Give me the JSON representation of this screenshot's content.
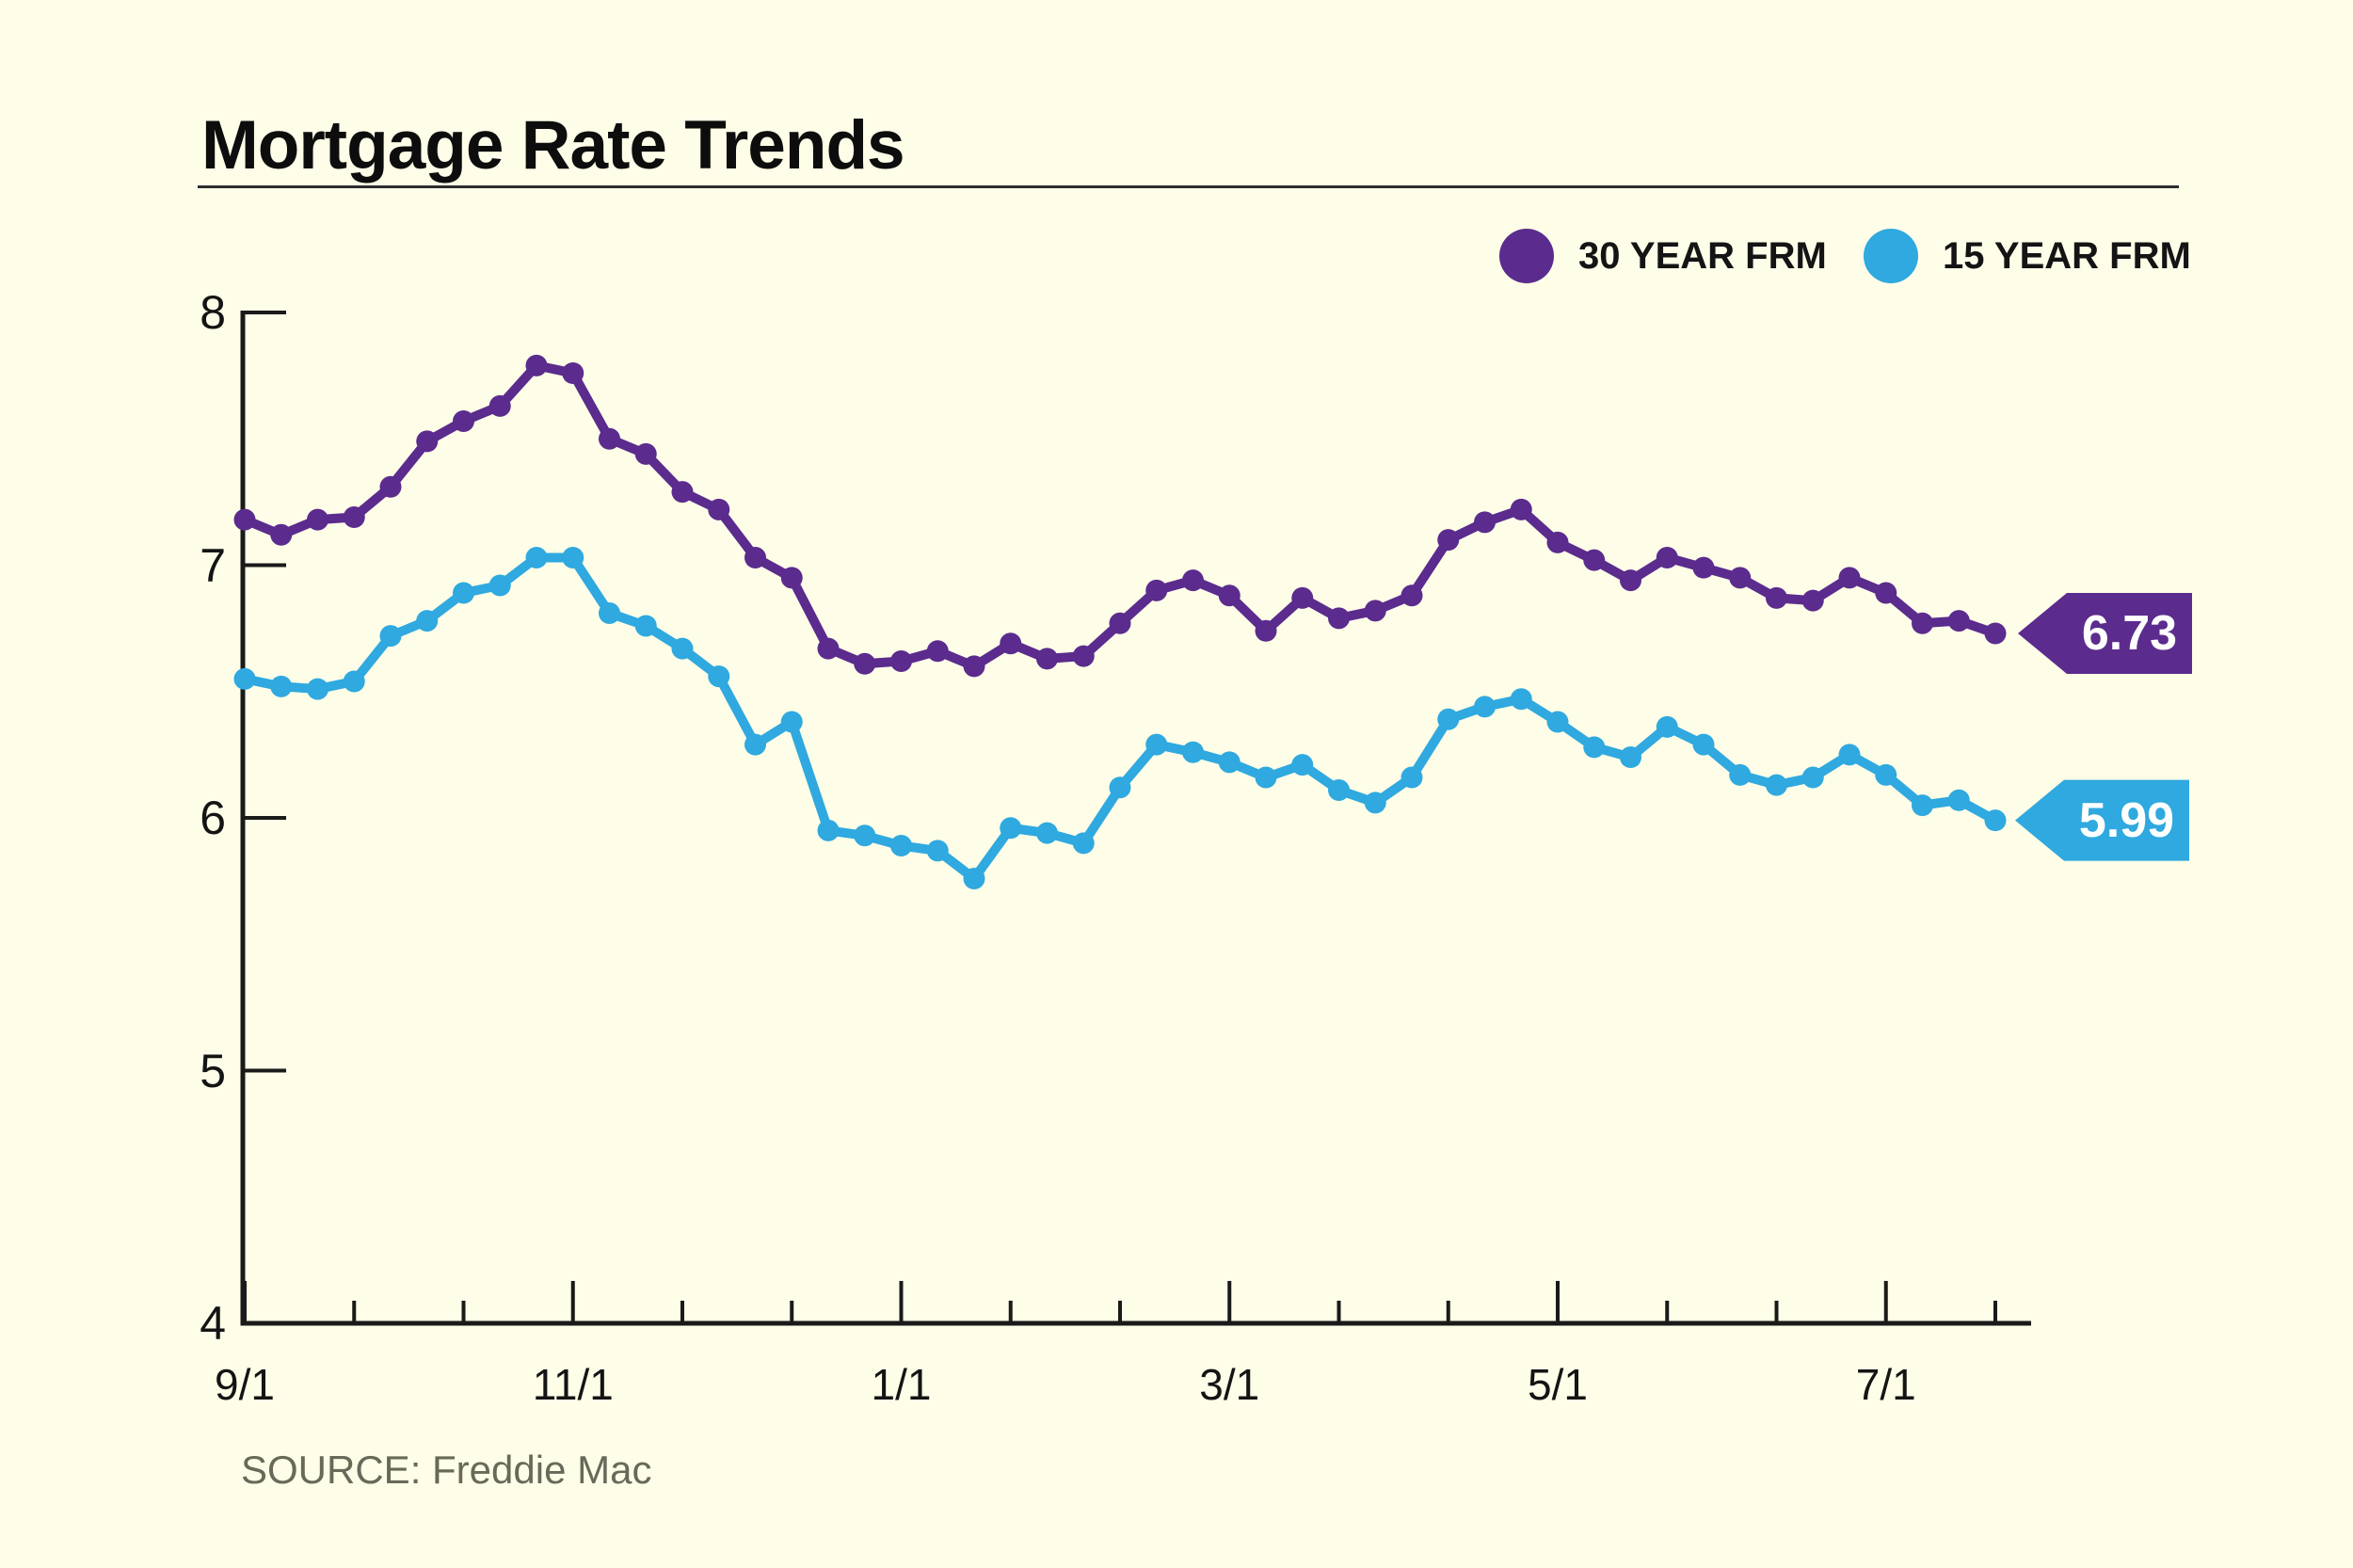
{
  "title": "Mortgage Rate Trends",
  "source": "SOURCE: Freddie Mac",
  "colors": {
    "background": "#FDFDE8",
    "purple": "#5B2B8D",
    "blue": "#2FA9DF",
    "axis": "#1A1A1A",
    "title_text": "#0D0D0D",
    "source_text": "#69695A",
    "tag_text": "#FFFFFF"
  },
  "legend": {
    "items": [
      {
        "name": "30 YEAR FRM",
        "color": "#5B2B8D"
      },
      {
        "name": "15 YEAR FRM",
        "color": "#2FA9DF"
      }
    ]
  },
  "end_labels": {
    "thirty_year": "6.73",
    "fifteen_year": "5.99"
  },
  "chart_data": {
    "type": "line",
    "title": "Mortgage Rate Trends",
    "source": "SOURCE: Freddie Mac",
    "x_unit": "weekly observations from 9/1 through 8/1",
    "x_tick_labels": [
      "9/1",
      "11/1",
      "1/1",
      "3/1",
      "5/1",
      "7/1"
    ],
    "x_tick_week_indices": [
      0,
      9,
      18,
      27,
      36,
      45
    ],
    "minor_x_tick_every_weeks": 3,
    "total_weeks": 48,
    "y_tick_labels": [
      "8",
      "7",
      "6",
      "5",
      "4"
    ],
    "ylim": [
      4,
      8
    ],
    "grid": false,
    "legend_position": "top-right",
    "series": [
      {
        "name": "30 YEAR FRM",
        "color": "#5B2B8D",
        "end_label": "6.73",
        "values": [
          7.18,
          7.12,
          7.18,
          7.19,
          7.31,
          7.49,
          7.57,
          7.63,
          7.79,
          7.76,
          7.5,
          7.44,
          7.29,
          7.22,
          7.03,
          6.95,
          6.67,
          6.61,
          6.62,
          6.66,
          6.6,
          6.69,
          6.63,
          6.64,
          6.77,
          6.9,
          6.94,
          6.88,
          6.74,
          6.87,
          6.79,
          6.82,
          6.88,
          7.1,
          7.17,
          7.22,
          7.09,
          7.02,
          6.94,
          7.03,
          6.99,
          6.95,
          6.87,
          6.86,
          6.95,
          6.89,
          6.77,
          6.78,
          6.73
        ]
      },
      {
        "name": "15 YEAR FRM",
        "color": "#2FA9DF",
        "end_label": "5.99",
        "values": [
          6.55,
          6.52,
          6.51,
          6.54,
          6.72,
          6.78,
          6.89,
          6.92,
          7.03,
          7.03,
          6.81,
          6.76,
          6.67,
          6.56,
          6.29,
          6.38,
          5.95,
          5.93,
          5.89,
          5.87,
          5.76,
          5.96,
          5.94,
          5.9,
          6.12,
          6.29,
          6.26,
          6.22,
          6.16,
          6.21,
          6.11,
          6.06,
          6.16,
          6.39,
          6.44,
          6.47,
          6.38,
          6.28,
          6.24,
          6.36,
          6.29,
          6.17,
          6.13,
          6.16,
          6.25,
          6.17,
          6.05,
          6.07,
          5.99
        ]
      }
    ]
  }
}
